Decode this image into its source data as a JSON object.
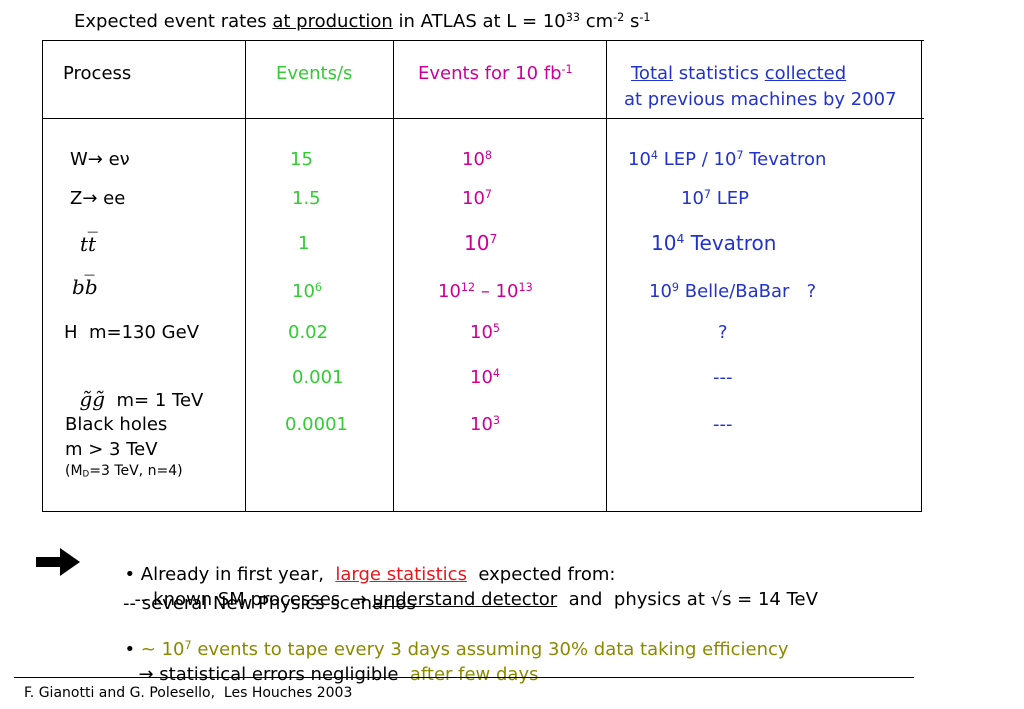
{
  "title": {
    "pre": "Expected event rates ",
    "underlined": "at production",
    "post": " in ATLAS at L = 10",
    "exp1": "33",
    "mid": " cm",
    "exp2": "-2",
    "mid2": " s",
    "exp3": "-1"
  },
  "header": {
    "process": "Process",
    "events_per_s": "Events/s",
    "events_for": "Events for 10 fb",
    "events_for_exp": "-1",
    "total_underlined": "Total",
    "statistics": " statistics ",
    "collected_underlined": "collected",
    "previous": "at previous machines by 2007"
  },
  "rows": [
    {
      "process": "W→ eν",
      "rate": "15",
      "events_base": "10",
      "events_exp": "8",
      "prev_a": "10",
      "prev_a_exp": "4",
      "prev_b": " LEP / 10",
      "prev_b_exp": "7",
      "prev_c": " Tevatron"
    },
    {
      "process": "Z→ ee",
      "rate": "1.5",
      "events_base": "10",
      "events_exp": "7",
      "prev_a": "10",
      "prev_a_exp": "7",
      "prev_b": " LEP"
    },
    {
      "process_a": "t",
      "process_b": "t̅",
      "rate": "1",
      "events_base": "10",
      "events_exp": "7",
      "prev_a": "10",
      "prev_a_exp": "4",
      "prev_b": " Tevatron"
    },
    {
      "process_a": "b",
      "process_b": "b̅",
      "rate": "10",
      "rate_exp": "6",
      "events_base": "10",
      "events_exp": "12",
      "events_dash": " – 10",
      "events_exp2": "13",
      "prev_a": "10",
      "prev_a_exp": "9",
      "prev_b": " Belle/BaBar   ?"
    },
    {
      "process": "H  m=130 GeV",
      "rate": "0.02",
      "events_base": "10",
      "events_exp": "5",
      "prev": "?"
    },
    {
      "process_g": "g̃g̃",
      "process": "  m= 1 TeV",
      "rate": "0.001",
      "events_base": "10",
      "events_exp": "4",
      "prev": "---"
    },
    {
      "process": "Black holes",
      "process2": "m > 3 TeV",
      "process3a": "(M",
      "process3sub": "D",
      "process3b": "=3 TeV, n=4)",
      "rate": "0.0001",
      "events_base": "10",
      "events_exp": "3",
      "prev": "---"
    }
  ],
  "bullets": {
    "b1_pre": "• Already in first year,  ",
    "b1_red": "large statistics",
    "b1_post": "  expected from:",
    "b2_pre": "-- known SM processes  → ",
    "b2_ul": "understand detector",
    "b2_post": "  and  physics at √s = 14 TeV",
    "b3": "-- several New Physics scenarios",
    "b4_bullet": "• ",
    "b4_a": "~ 10",
    "b4_exp": "7",
    "b4_b": " events to tape every 3 days assuming 30% data taking efficiency",
    "b5_arrow": "→",
    "b5_black": " statistical errors negligible  ",
    "b5_olive": "after few days"
  },
  "footer": "F. Gianotti and G. Polesello,  Les Houches 2003",
  "colors": {
    "green": "#33cc33",
    "magenta": "#cc0099",
    "blue": "#2233cc",
    "red": "#e8171c",
    "olive": "#8a8a00"
  },
  "icons": [
    "right-arrow-icon"
  ]
}
